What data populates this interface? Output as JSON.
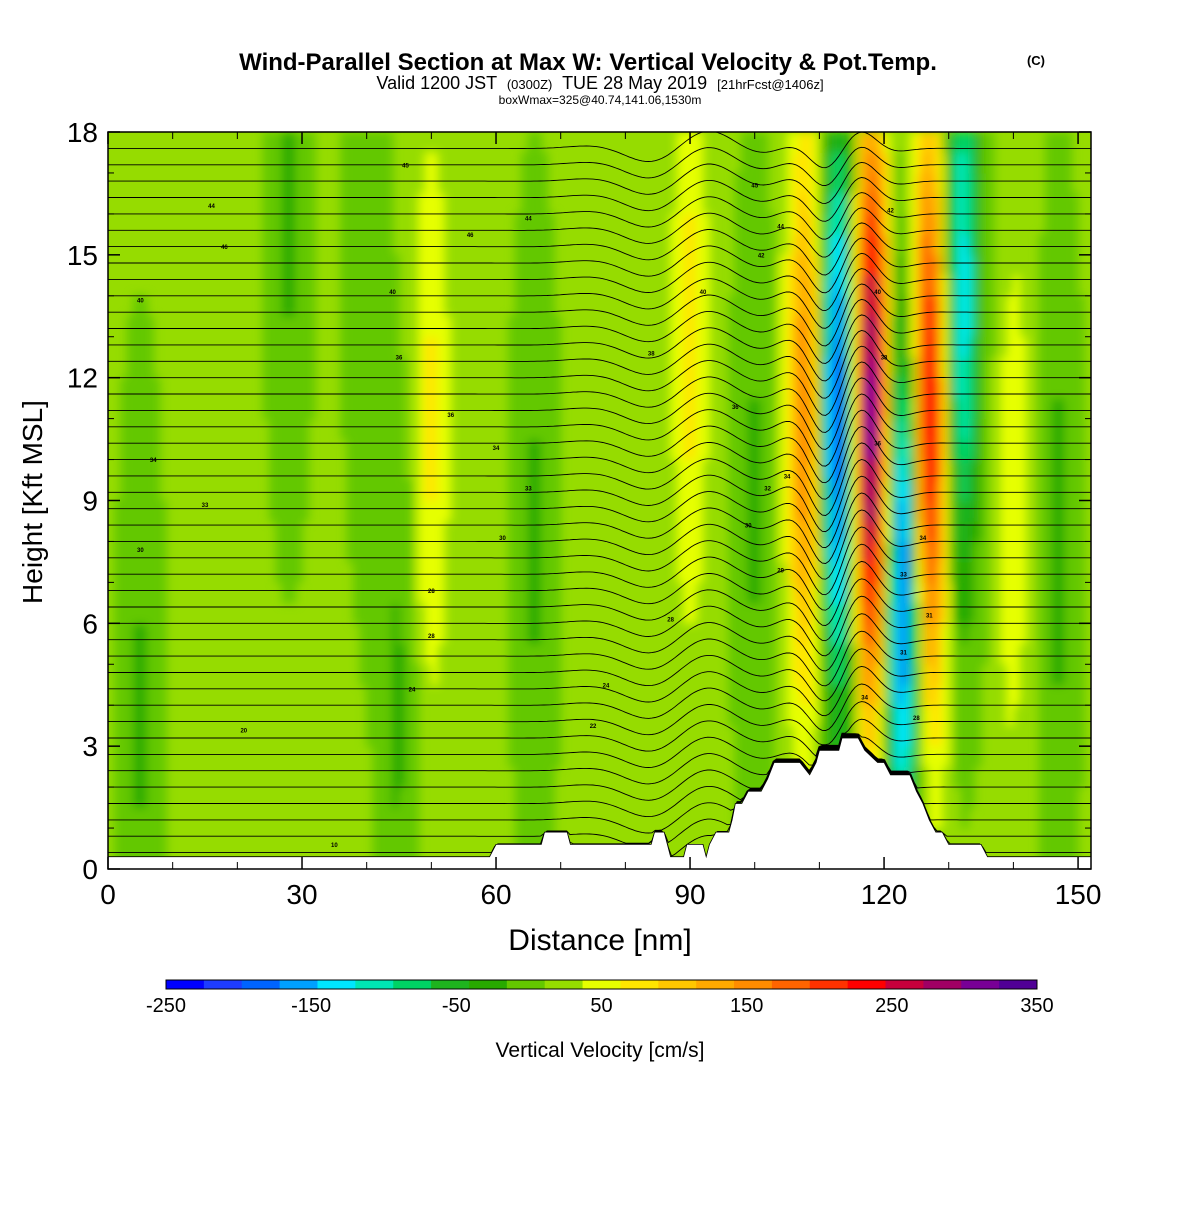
{
  "chart_data": {
    "type": "heatmap",
    "title": "Wind-Parallel Section at Max W: Vertical Velocity & Pot.Temp.",
    "title_mark": "(C)",
    "subtitle": {
      "valid_prefix": "Valid 1200 JST",
      "utc": "(0300Z)",
      "date": "TUE 28 May 2019",
      "forecast": "[21hrFcst@1406z]"
    },
    "box_line": "boxWmax=325@40.74,141.06,1530m",
    "xlabel": "Distance [nm]",
    "ylabel": "Height [Kft MSL]",
    "xlim": [
      0,
      152
    ],
    "ylim": [
      0,
      18
    ],
    "xticks": [
      "0",
      "30",
      "60",
      "90",
      "120",
      "150"
    ],
    "yticks": [
      "0",
      "3",
      "6",
      "9",
      "12",
      "15",
      "18"
    ],
    "colorbar": {
      "label": "Vertical Velocity [cm/s]",
      "range": [
        -250,
        350
      ],
      "tick_labels": [
        "-250",
        "-150",
        "-50",
        "50",
        "150",
        "250",
        "350"
      ],
      "colors": [
        "#0000ff",
        "#1e3cff",
        "#0064ff",
        "#00a0ff",
        "#00e6ff",
        "#00e6b4",
        "#00d264",
        "#1eb41e",
        "#28aa00",
        "#64c800",
        "#96dc00",
        "#e6ff00",
        "#ffe600",
        "#ffc800",
        "#ffaa00",
        "#ff8c00",
        "#ff6400",
        "#ff3200",
        "#ff0000",
        "#c8003c",
        "#a00064",
        "#780096",
        "#500096"
      ]
    },
    "background_velocity": 15,
    "velocity_features": [
      {
        "x": 5,
        "y": 3.8,
        "value": -35
      },
      {
        "x": 28,
        "y": 17,
        "value": -40
      },
      {
        "x": 40,
        "y": 15,
        "value": -30
      },
      {
        "x": 45,
        "y": 4,
        "value": -35
      },
      {
        "x": 50,
        "y": 11,
        "value": 55
      },
      {
        "x": 66,
        "y": 8,
        "value": -35
      },
      {
        "x": 90,
        "y": 13,
        "value": 60
      },
      {
        "x": 100,
        "y": 9,
        "value": -35
      },
      {
        "x": 108,
        "y": 11,
        "value": 150
      },
      {
        "x": 113,
        "y": 11,
        "value": -230
      },
      {
        "x": 118,
        "y": 11,
        "value": 320
      },
      {
        "x": 123,
        "y": 7,
        "value": -220
      },
      {
        "x": 127,
        "y": 11,
        "value": 250
      },
      {
        "x": 132,
        "y": 14,
        "value": -150
      },
      {
        "x": 140,
        "y": 9,
        "value": 40
      },
      {
        "x": 147,
        "y": 8,
        "value": -40
      }
    ],
    "terrain_kft": [
      [
        0,
        0.3
      ],
      [
        59,
        0.3
      ],
      [
        60,
        0.6
      ],
      [
        67,
        0.6
      ],
      [
        67.5,
        0.9
      ],
      [
        71,
        0.9
      ],
      [
        71.5,
        0.6
      ],
      [
        84,
        0.6
      ],
      [
        84.5,
        0.9
      ],
      [
        86,
        0.9
      ],
      [
        86.5,
        0.6
      ],
      [
        87,
        0.3
      ],
      [
        89,
        0.3
      ],
      [
        89.5,
        0.6
      ],
      [
        92,
        0.6
      ],
      [
        92.5,
        0.3
      ],
      [
        93,
        0.6
      ],
      [
        94,
        0.9
      ],
      [
        96,
        0.9
      ],
      [
        96.5,
        1.2
      ],
      [
        97,
        1.6
      ],
      [
        98,
        1.6
      ],
      [
        99,
        1.9
      ],
      [
        101,
        1.9
      ],
      [
        102,
        2.2
      ],
      [
        103,
        2.6
      ],
      [
        107,
        2.6
      ],
      [
        108.5,
        2.3
      ],
      [
        109.5,
        2.6
      ],
      [
        110,
        2.9
      ],
      [
        113,
        2.9
      ],
      [
        113.5,
        3.2
      ],
      [
        116,
        3.2
      ],
      [
        117,
        2.9
      ],
      [
        119,
        2.6
      ],
      [
        120,
        2.6
      ],
      [
        121,
        2.3
      ],
      [
        124,
        2.3
      ],
      [
        125,
        1.9
      ],
      [
        126,
        1.6
      ],
      [
        127,
        1.2
      ],
      [
        128,
        0.9
      ],
      [
        129,
        0.9
      ],
      [
        130,
        0.6
      ],
      [
        135,
        0.6
      ],
      [
        136,
        0.3
      ],
      [
        152,
        0.3
      ]
    ],
    "isentrope_labels": [
      {
        "x": 46,
        "y": 17.2,
        "text": "45"
      },
      {
        "x": 16,
        "y": 16.2,
        "text": "44"
      },
      {
        "x": 18,
        "y": 15.2,
        "text": "46"
      },
      {
        "x": 56,
        "y": 15.5,
        "text": "46"
      },
      {
        "x": 65,
        "y": 15.9,
        "text": "44"
      },
      {
        "x": 5,
        "y": 13.9,
        "text": "40"
      },
      {
        "x": 44,
        "y": 14.1,
        "text": "40"
      },
      {
        "x": 45,
        "y": 12.5,
        "text": "36"
      },
      {
        "x": 53,
        "y": 11.1,
        "text": "36"
      },
      {
        "x": 84,
        "y": 12.6,
        "text": "38"
      },
      {
        "x": 7,
        "y": 10,
        "text": "34"
      },
      {
        "x": 60,
        "y": 10.3,
        "text": "34"
      },
      {
        "x": 65,
        "y": 9.3,
        "text": "33"
      },
      {
        "x": 15,
        "y": 8.9,
        "text": "33"
      },
      {
        "x": 5,
        "y": 7.8,
        "text": "30"
      },
      {
        "x": 61,
        "y": 8.1,
        "text": "30"
      },
      {
        "x": 50,
        "y": 6.8,
        "text": "28"
      },
      {
        "x": 50,
        "y": 5.7,
        "text": "28"
      },
      {
        "x": 87,
        "y": 6.1,
        "text": "28"
      },
      {
        "x": 47,
        "y": 4.4,
        "text": "24"
      },
      {
        "x": 77,
        "y": 4.5,
        "text": "24"
      },
      {
        "x": 75,
        "y": 3.5,
        "text": "22"
      },
      {
        "x": 21,
        "y": 3.4,
        "text": "20"
      },
      {
        "x": 35,
        "y": 0.6,
        "text": "10"
      },
      {
        "x": 100,
        "y": 16.7,
        "text": "45"
      },
      {
        "x": 104,
        "y": 15.7,
        "text": "44"
      },
      {
        "x": 101,
        "y": 15,
        "text": "42"
      },
      {
        "x": 92,
        "y": 14.1,
        "text": "40"
      },
      {
        "x": 97,
        "y": 11.3,
        "text": "36"
      },
      {
        "x": 102,
        "y": 9.3,
        "text": "32"
      },
      {
        "x": 99,
        "y": 8.4,
        "text": "30"
      },
      {
        "x": 105,
        "y": 9.6,
        "text": "34"
      },
      {
        "x": 104,
        "y": 7.3,
        "text": "29"
      },
      {
        "x": 121,
        "y": 16.1,
        "text": "42"
      },
      {
        "x": 119,
        "y": 14.1,
        "text": "40"
      },
      {
        "x": 120,
        "y": 12.5,
        "text": "38"
      },
      {
        "x": 119,
        "y": 10.4,
        "text": "36"
      },
      {
        "x": 126,
        "y": 8.1,
        "text": "34"
      },
      {
        "x": 123,
        "y": 7.2,
        "text": "33"
      },
      {
        "x": 127,
        "y": 6.2,
        "text": "31"
      },
      {
        "x": 123,
        "y": 5.3,
        "text": "31"
      },
      {
        "x": 117,
        "y": 4.2,
        "text": "34"
      },
      {
        "x": 125,
        "y": 3.7,
        "text": "28"
      }
    ]
  }
}
